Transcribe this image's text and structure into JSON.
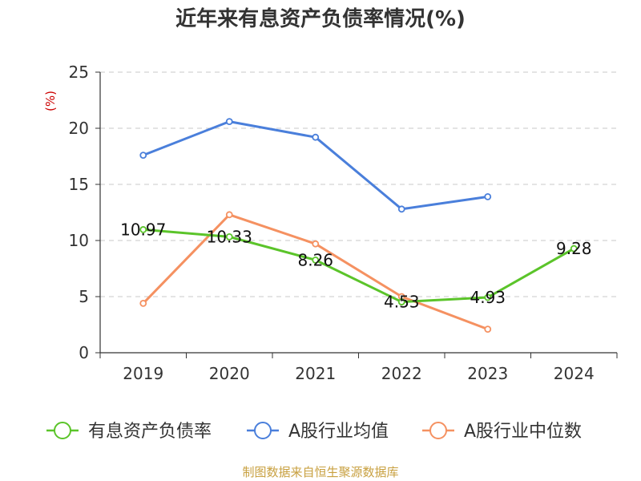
{
  "chart_data": {
    "type": "line",
    "title": "近年来有息资产负债率情况(%)",
    "ylabel": "(%)",
    "categories": [
      "2019",
      "2020",
      "2021",
      "2022",
      "2023",
      "2024"
    ],
    "ylim": [
      0,
      25
    ],
    "yticks": [
      "0",
      "5",
      "10",
      "15",
      "20",
      "25"
    ],
    "grid": true,
    "legend_position": "bottom",
    "series": [
      {
        "name": "有息资产负债率",
        "color": "#5bc42a",
        "values": [
          10.97,
          10.33,
          8.26,
          4.53,
          4.93,
          9.28
        ],
        "labels": [
          "10.97",
          "10.33",
          "8.26",
          "4.53",
          "4.93",
          "9.28"
        ]
      },
      {
        "name": "A股行业均值",
        "color": "#4a7fdb",
        "values": [
          17.6,
          20.6,
          19.2,
          12.8,
          13.9,
          null
        ]
      },
      {
        "name": "A股行业中位数",
        "color": "#f59161",
        "values": [
          4.4,
          12.3,
          9.7,
          5.0,
          2.1,
          null
        ]
      }
    ],
    "source": "制图数据来自恒生聚源数据库"
  }
}
